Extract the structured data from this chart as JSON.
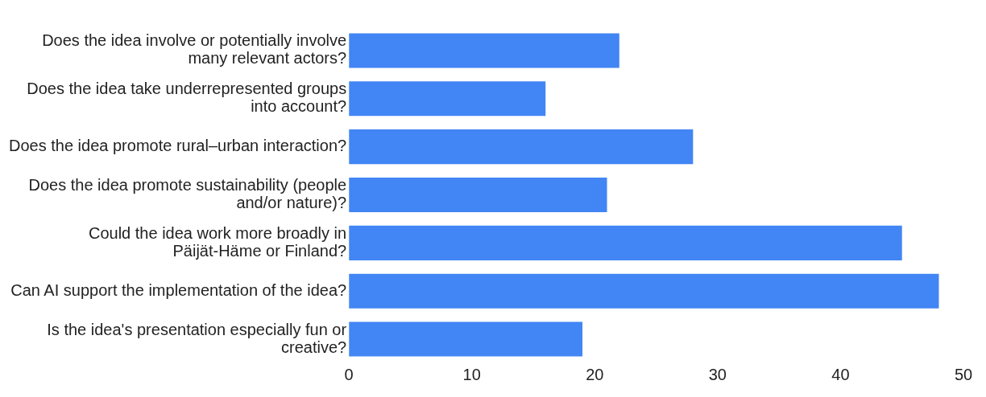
{
  "chart_data": {
    "type": "bar",
    "orientation": "horizontal",
    "categories": [
      "Does the idea involve or potentially involve many relevant actors?",
      "Does the idea take underrepresented groups into account?",
      "Does the idea promote rural–urban interaction?",
      "Does the idea promote sustainability (people and/or nature)?",
      "Could the idea work more broadly in Päijät-Häme or Finland?",
      "Can AI support the implementation of the idea?",
      "Is the idea's presentation especially fun or creative?"
    ],
    "values": [
      22,
      16,
      28,
      21,
      45,
      48,
      19
    ],
    "color": "#4285f4",
    "xlim": [
      0,
      50
    ],
    "xticks": [
      0,
      10,
      20,
      30,
      40,
      50
    ],
    "grid": false,
    "legend": false
  }
}
